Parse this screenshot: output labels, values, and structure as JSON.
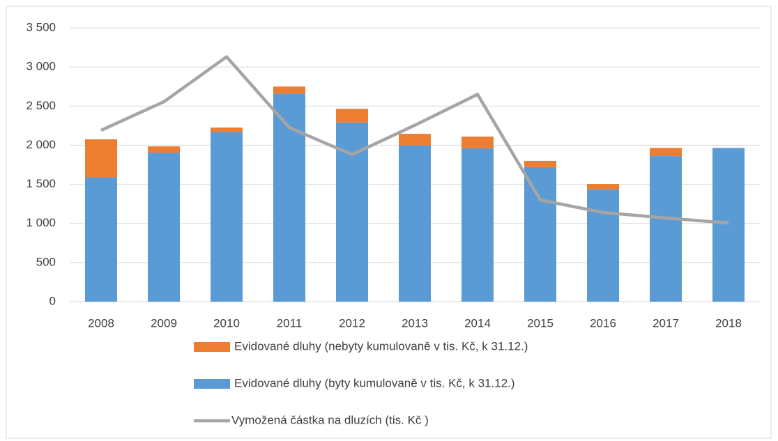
{
  "chart_data": {
    "type": "bar",
    "categories": [
      "2008",
      "2009",
      "2010",
      "2011",
      "2012",
      "2013",
      "2014",
      "2015",
      "2016",
      "2017",
      "2018"
    ],
    "series": [
      {
        "name": "Evidované dluhy (byty kumulovaně v tis. Kč, k 31.12.)",
        "color": "#5b9bd5",
        "type": "bar",
        "values": [
          1590,
          1905,
          2170,
          2660,
          2290,
          2000,
          1960,
          1720,
          1435,
          1860,
          1965
        ]
      },
      {
        "name": "Evidované dluhy (nebyty kumulovaně v tis. Kč, k 31.12.)",
        "color": "#ed7d31",
        "type": "bar",
        "values": [
          485,
          80,
          55,
          90,
          175,
          145,
          150,
          80,
          70,
          105,
          0
        ]
      },
      {
        "name": "Vymožená částka na dluzích (tis. Kč )",
        "color": "#a5a5a5",
        "type": "line",
        "values": [
          2190,
          2555,
          3130,
          2225,
          1880,
          2255,
          2650,
          1300,
          1140,
          1070,
          1005
        ]
      }
    ],
    "stacked": true,
    "ylim": [
      0,
      3500
    ],
    "yticks": [
      0,
      500,
      {
        "value": 1000,
        "label": "1 000"
      },
      {
        "value": 1500,
        "label": "1 500"
      },
      {
        "value": 2000,
        "label": "2 000"
      },
      {
        "value": 2500,
        "label": "2 500"
      },
      {
        "value": 3000,
        "label": "3 000"
      },
      {
        "value": 3500,
        "label": "3 500"
      }
    ],
    "grid": true,
    "legend": "bottom"
  }
}
